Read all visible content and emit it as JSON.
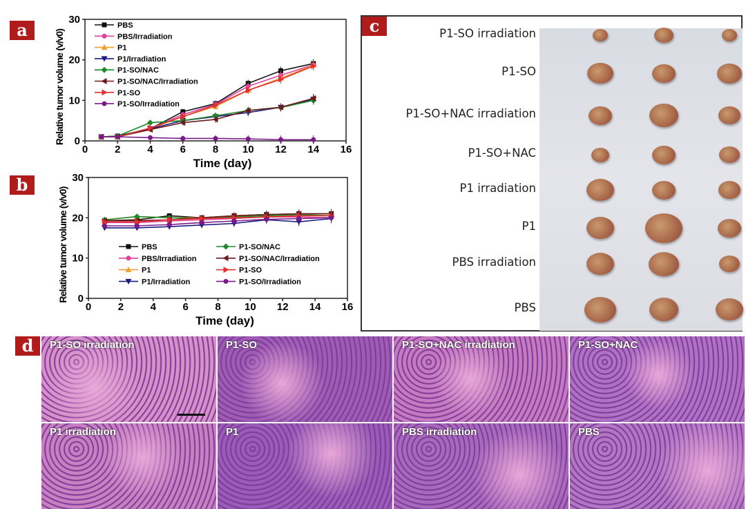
{
  "panel_labels": {
    "a": "a",
    "b": "b",
    "c": "c",
    "d": "d"
  },
  "chart_data": [
    {
      "type": "line",
      "panel": "a",
      "xlabel": "Time (day)",
      "ylabel": "Relative tumor volume (v/v0)",
      "xlim": [
        0,
        16
      ],
      "ylim": [
        0,
        30
      ],
      "xticks": [
        0,
        2,
        4,
        6,
        8,
        10,
        12,
        14,
        16
      ],
      "yticks": [
        0,
        10,
        20,
        30
      ],
      "legend_placement": "top-left",
      "x": [
        1,
        2,
        4,
        6,
        8,
        10,
        12,
        14
      ],
      "series": [
        {
          "name": "PBS",
          "color": "#111111",
          "marker": "square",
          "values": [
            1,
            1.2,
            3,
            7.2,
            9.2,
            14.2,
            17.3,
            19.1
          ]
        },
        {
          "name": "PBS/Irradiation",
          "color": "#e0409a",
          "marker": "circle",
          "values": [
            1,
            1,
            3,
            6.5,
            9,
            13.5,
            16.2,
            18.8
          ]
        },
        {
          "name": "P1",
          "color": "#f0a030",
          "marker": "triangle-up",
          "values": [
            1,
            1,
            3,
            6,
            8.5,
            12.5,
            15.5,
            18.7
          ]
        },
        {
          "name": "P1/Irradiation",
          "color": "#1a1a80",
          "marker": "triangle-down",
          "values": [
            1,
            1,
            3,
            5,
            6,
            7,
            8.3,
            10.3
          ]
        },
        {
          "name": "P1-SO/NAC",
          "color": "#1e8a2a",
          "marker": "diamond",
          "values": [
            1,
            1.2,
            4.5,
            5,
            6.2,
            7.5,
            8.2,
            10
          ]
        },
        {
          "name": "P1-SO/NAC/Irradiation",
          "color": "#6a1a1a",
          "marker": "triangle-left",
          "values": [
            1,
            1,
            2.8,
            4.5,
            5.3,
            7.5,
            8.3,
            10.5
          ]
        },
        {
          "name": "P1-SO",
          "color": "#e03030",
          "marker": "triangle-right",
          "values": [
            1,
            1,
            3.2,
            6,
            8.8,
            12.5,
            15.2,
            18.5
          ]
        },
        {
          "name": "P1-SO/Irradiation",
          "color": "#7a1a8a",
          "marker": "circle",
          "values": [
            1,
            1,
            0.8,
            0.6,
            0.6,
            0.5,
            0.3,
            0.3
          ]
        }
      ]
    },
    {
      "type": "line",
      "panel": "b",
      "xlabel": "Time (day)",
      "ylabel": "Relative tumor volume (v/v0)",
      "xlim": [
        0,
        16
      ],
      "ylim": [
        0,
        30
      ],
      "xticks": [
        0,
        2,
        4,
        6,
        8,
        10,
        12,
        14,
        16
      ],
      "yticks": [
        0,
        10,
        20,
        30
      ],
      "legend_placement": "center (two columns)",
      "x": [
        1,
        3,
        5,
        7,
        9,
        11,
        13,
        15
      ],
      "series": [
        {
          "name": "PBS",
          "color": "#111111",
          "marker": "square",
          "values": [
            19.3,
            19.5,
            20.5,
            20,
            20.5,
            20.8,
            21,
            21
          ]
        },
        {
          "name": "PBS/Irradiation",
          "color": "#e0409a",
          "marker": "circle",
          "values": [
            18.8,
            18.8,
            19.2,
            19.5,
            19.8,
            20.2,
            20.2,
            20
          ]
        },
        {
          "name": "P1",
          "color": "#f0a030",
          "marker": "triangle-up",
          "values": [
            19.5,
            20.3,
            20,
            20,
            20.3,
            20.5,
            20.8,
            20.5
          ]
        },
        {
          "name": "P1/Irradiation",
          "color": "#1a1a80",
          "marker": "triangle-down",
          "values": [
            17.5,
            17.5,
            17.8,
            18.2,
            18.6,
            19.5,
            19,
            19.8
          ]
        },
        {
          "name": "P1-SO/NAC",
          "color": "#1e8a2a",
          "marker": "diamond",
          "values": [
            19.5,
            20.3,
            20,
            19.8,
            20.2,
            20.5,
            20.8,
            20.5
          ]
        },
        {
          "name": "P1-SO/NAC/Irradiation",
          "color": "#6a1a1a",
          "marker": "triangle-left",
          "values": [
            19.3,
            19.3,
            19.5,
            20,
            20.5,
            20.8,
            21,
            21
          ]
        },
        {
          "name": "P1-SO",
          "color": "#e03030",
          "marker": "triangle-right",
          "values": [
            19,
            19,
            19.5,
            19.8,
            20,
            20.2,
            20.5,
            20.5
          ]
        },
        {
          "name": "P1-SO/Irradiation",
          "color": "#7a1a8a",
          "marker": "circle",
          "values": [
            18,
            18,
            18.3,
            18.8,
            19.2,
            19.6,
            19.8,
            20
          ]
        }
      ]
    }
  ],
  "photo_panel": {
    "rows": [
      "P1-SO irradiation",
      "P1-SO",
      "P1-SO+NAC irradiation",
      "P1-SO+NAC",
      "P1 irradiation",
      "P1",
      "PBS irradiation",
      "PBS"
    ]
  },
  "histology_panel": {
    "tiles": [
      "P1-SO irradiation",
      "P1-SO",
      "P1-SO+NAC irradiation",
      "P1-SO+NAC",
      "P1 irradiation",
      "P1",
      "PBS irradiation",
      "PBS"
    ]
  }
}
